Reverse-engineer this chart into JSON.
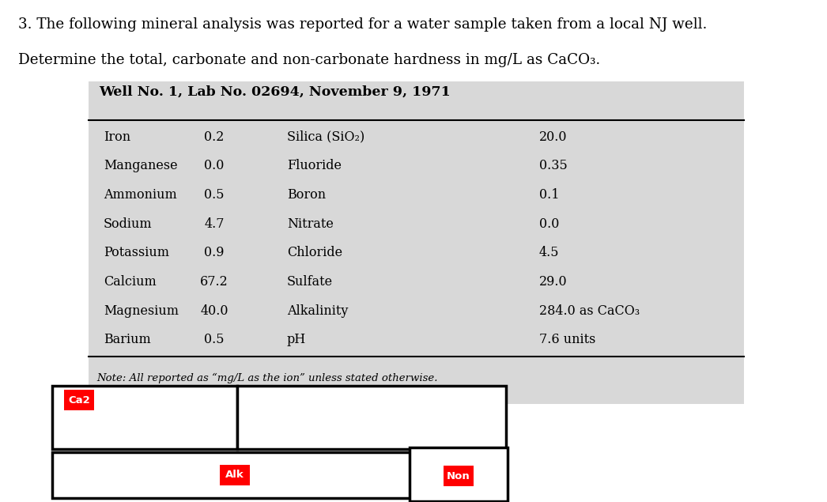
{
  "title_line1": "3. The following mineral analysis was reported for a water sample taken from a local NJ well.",
  "title_line2": "Determine the total, carbonate and non-carbonate hardness in mg/L as CaCO₃.",
  "table_title": "Well No. 1, Lab No. 02694, November 9, 1971",
  "note": "Note: All reported as “mg/L as the ion” unless stated otherwise.",
  "left_col": [
    "Iron",
    "Manganese",
    "Ammonium",
    "Sodium",
    "Potassium",
    "Calcium",
    "Magnesium",
    "Barium"
  ],
  "left_val": [
    "0.2",
    "0.0",
    "0.5",
    "4.7",
    "0.9",
    "67.2",
    "40.0",
    "0.5"
  ],
  "right_col": [
    "Silica (SiO₂)",
    "Fluoride",
    "Boron",
    "Nitrate",
    "Chloride",
    "Sulfate",
    "Alkalinity",
    "pH"
  ],
  "right_val": [
    "20.0",
    "0.35",
    "0.1",
    "0.0",
    "4.5",
    "29.0",
    "284.0 as CaCO₃",
    "7.6 units"
  ],
  "bg_color": "#ffffff",
  "table_bg": "#d8d8d8",
  "red_color": "#ff0000",
  "label_ca2": "Ca2",
  "label_alk": "Alk",
  "label_non": "Non",
  "fig_w": 10.46,
  "fig_h": 6.35,
  "dpi": 100
}
